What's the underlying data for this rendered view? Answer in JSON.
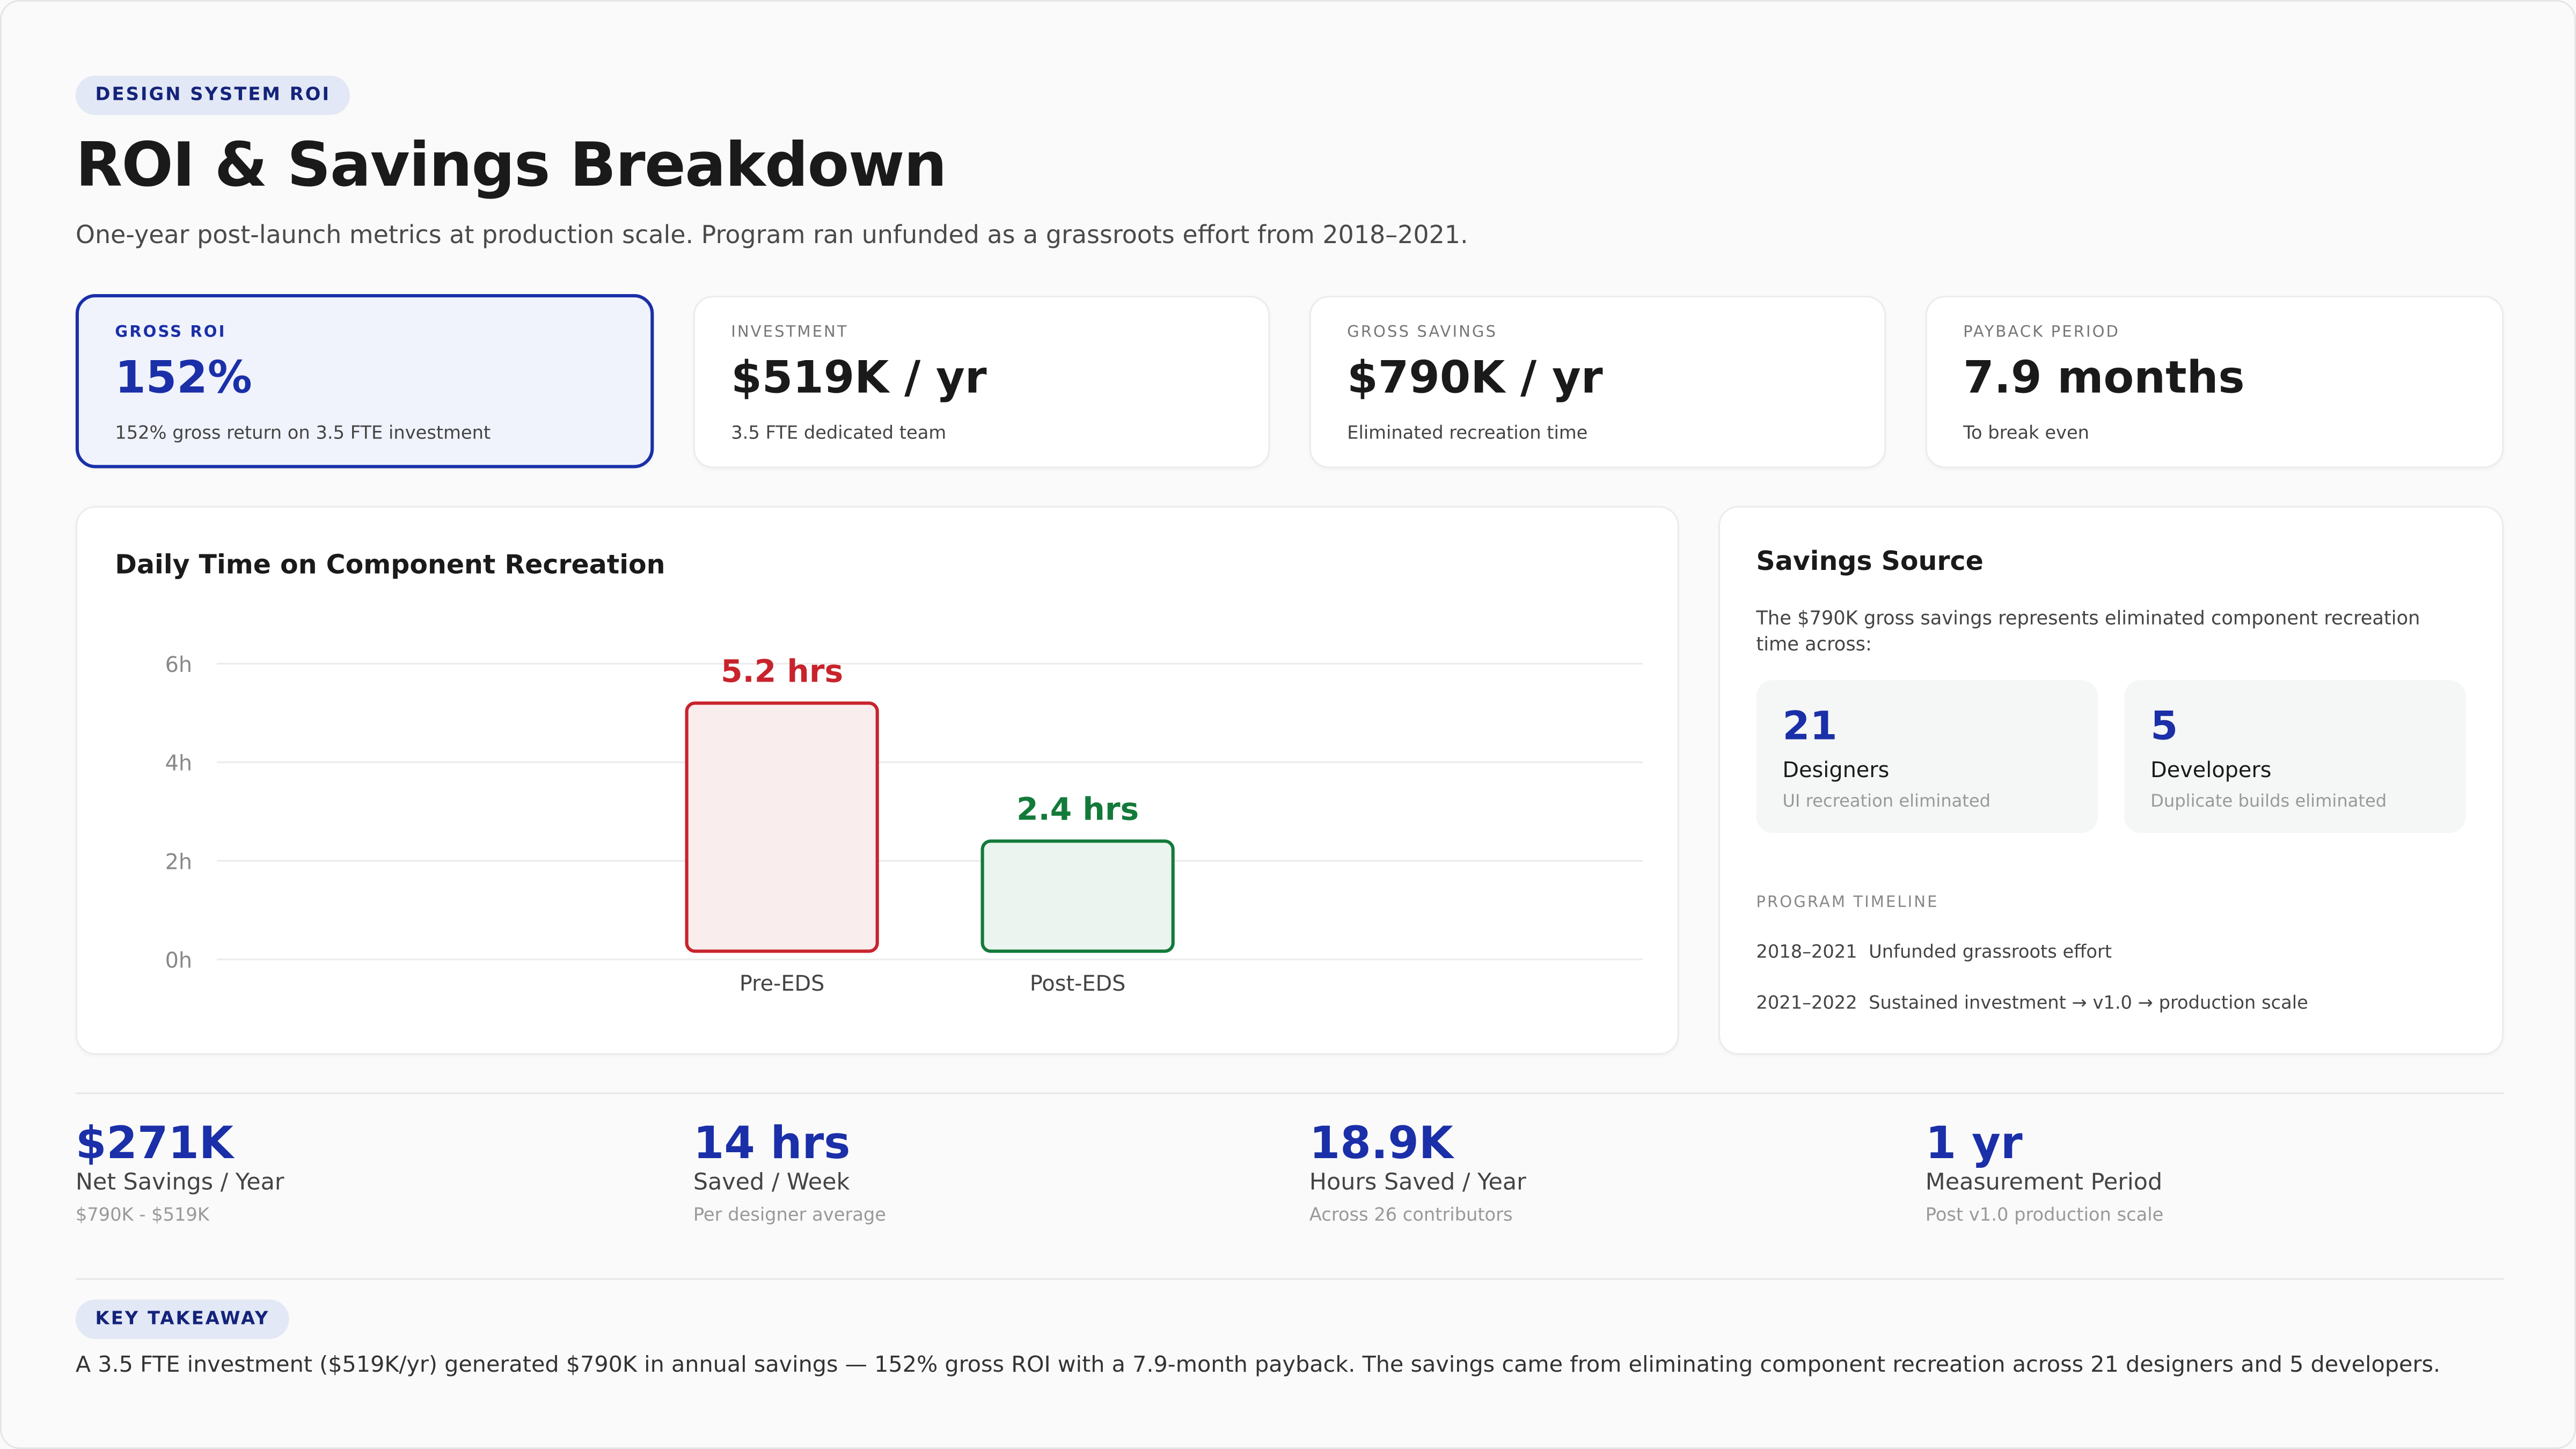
{
  "header": {
    "eyebrow": "DESIGN SYSTEM ROI",
    "title": "ROI & Savings Breakdown",
    "subtitle": "One-year post-launch metrics at production scale. Program ran unfunded as a grassroots effort from 2018–2021."
  },
  "kpis": [
    {
      "label": "GROSS ROI",
      "value": "152%",
      "desc": "152% gross return on 3.5 FTE investment",
      "active": true
    },
    {
      "label": "INVESTMENT",
      "value": "$519K / yr",
      "desc": "3.5 FTE dedicated team"
    },
    {
      "label": "GROSS SAVINGS",
      "value": "$790K / yr",
      "desc": "Eliminated recreation time"
    },
    {
      "label": "PAYBACK PERIOD",
      "value": "7.9 months",
      "desc": "To break even"
    }
  ],
  "colors": {
    "accent": "#1a2fa8",
    "pre": "#c8232c",
    "post": "#137a3a"
  },
  "chart_data": {
    "type": "bar",
    "title": "Daily Time on Component Recreation",
    "categories": [
      "Pre-EDS",
      "Post-EDS"
    ],
    "values": [
      5.2,
      2.4
    ],
    "data_labels": [
      "5.2 hrs",
      "2.4 hrs"
    ],
    "yticks": [
      "0h",
      "2h",
      "4h",
      "6h"
    ],
    "ylim": [
      0,
      6
    ],
    "grid": true
  },
  "savings": {
    "title": "Savings Source",
    "desc": "The $790K gross savings represents eliminated component recreation time across:",
    "stats": [
      {
        "number": "21",
        "label": "Designers",
        "desc": "UI recreation eliminated"
      },
      {
        "number": "5",
        "label": "Developers",
        "desc": "Duplicate builds eliminated"
      }
    ],
    "timeline_label": "PROGRAM TIMELINE",
    "timeline": [
      {
        "years": "2018–2021",
        "text": "Unfunded grassroots effort"
      },
      {
        "years": "2021–2022",
        "text": "Sustained investment → v1.0 → production scale"
      }
    ]
  },
  "bottom_stats": [
    {
      "value": "$271K",
      "label": "Net Savings / Year",
      "desc": "$790K - $519K"
    },
    {
      "value": "14 hrs",
      "label": "Saved / Week",
      "desc": "Per designer average"
    },
    {
      "value": "18.9K",
      "label": "Hours Saved / Year",
      "desc": "Across 26 contributors"
    },
    {
      "value": "1 yr",
      "label": "Measurement Period",
      "desc": "Post v1.0 production scale"
    }
  ],
  "takeaway": {
    "label": "KEY TAKEAWAY",
    "text": "A 3.5 FTE investment ($519K/yr) generated $790K in annual savings — 152% gross ROI with a 7.9-month payback. The savings came from eliminating component recreation across 21 designers and 5 developers."
  }
}
